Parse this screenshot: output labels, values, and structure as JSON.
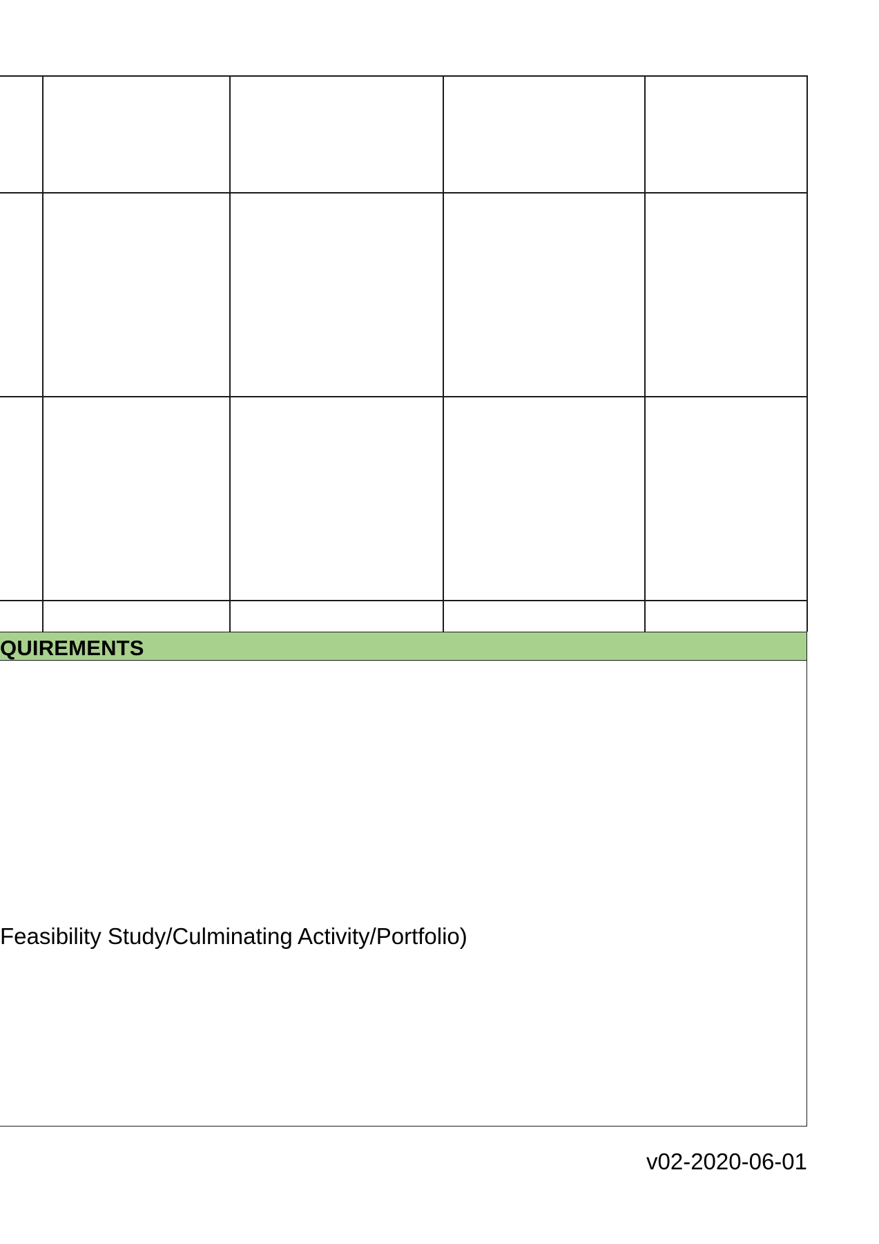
{
  "table": {
    "rows": 4,
    "columns": 5,
    "cells": [
      [
        "",
        "",
        "",
        "",
        ""
      ],
      [
        "",
        "",
        "",
        "",
        ""
      ],
      [
        "",
        "",
        "",
        "",
        ""
      ],
      [
        "",
        "",
        "",
        "",
        ""
      ]
    ]
  },
  "requirements_section": {
    "header_label": "QUIREMENTS",
    "body_text": "Feasibility Study/Culminating Activity/Portfolio)"
  },
  "footer": {
    "version": "v02-2020-06-01"
  },
  "colors": {
    "section_header_bg": "#a9d18e",
    "line": "#1a1a1a"
  }
}
